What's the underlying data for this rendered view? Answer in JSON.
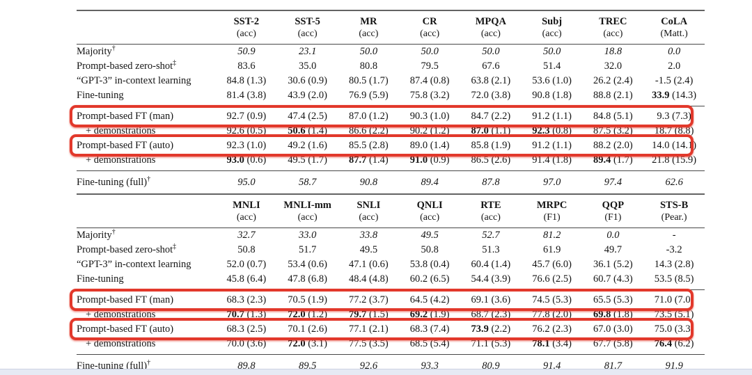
{
  "page": {
    "accent_red": "#e2382b",
    "bottom_bar_color": "#e6eaf4",
    "background": "#ffffff"
  },
  "tables": [
    {
      "id": "tasks-single-sentence",
      "columns": [
        {
          "name": "SST-2",
          "metric": "(acc)"
        },
        {
          "name": "SST-5",
          "metric": "(acc)"
        },
        {
          "name": "MR",
          "metric": "(acc)"
        },
        {
          "name": "CR",
          "metric": "(acc)"
        },
        {
          "name": "MPQA",
          "metric": "(acc)"
        },
        {
          "name": "Subj",
          "metric": "(acc)"
        },
        {
          "name": "TREC",
          "metric": "(acc)"
        },
        {
          "name": "CoLA",
          "metric": "(Matt.)"
        }
      ],
      "rows": [
        {
          "label": "Majority",
          "sup": "†",
          "italic": true,
          "cells": [
            {
              "v": "50.9"
            },
            {
              "v": "23.1"
            },
            {
              "v": "50.0"
            },
            {
              "v": "50.0"
            },
            {
              "v": "50.0"
            },
            {
              "v": "50.0"
            },
            {
              "v": "18.8"
            },
            {
              "v": "0.0"
            }
          ]
        },
        {
          "label": "Prompt-based zero-shot",
          "sup": "‡",
          "cells": [
            {
              "v": "83.6"
            },
            {
              "v": "35.0"
            },
            {
              "v": "80.8"
            },
            {
              "v": "79.5"
            },
            {
              "v": "67.6"
            },
            {
              "v": "51.4"
            },
            {
              "v": "32.0"
            },
            {
              "v": "2.0"
            }
          ]
        },
        {
          "label": "“GPT-3” in-context learning",
          "cells": [
            {
              "v": "84.8",
              "s": "(1.3)"
            },
            {
              "v": "30.6",
              "s": "(0.9)"
            },
            {
              "v": "80.5",
              "s": "(1.7)"
            },
            {
              "v": "87.4",
              "s": "(0.8)"
            },
            {
              "v": "63.8",
              "s": "(2.1)"
            },
            {
              "v": "53.6",
              "s": "(1.0)"
            },
            {
              "v": "26.2",
              "s": "(2.4)"
            },
            {
              "v": "-1.5",
              "s": "(2.4)"
            }
          ]
        },
        {
          "label": "Fine-tuning",
          "last_of_group": true,
          "cells": [
            {
              "v": "81.4",
              "s": "(3.8)"
            },
            {
              "v": "43.9",
              "s": "(2.0)"
            },
            {
              "v": "76.9",
              "s": "(5.9)"
            },
            {
              "v": "75.8",
              "s": "(3.2)"
            },
            {
              "v": "72.0",
              "s": "(3.8)"
            },
            {
              "v": "90.8",
              "s": "(1.8)"
            },
            {
              "v": "88.8",
              "s": "(2.1)"
            },
            {
              "v": "33.9",
              "s": "(14.3)",
              "b": true
            }
          ]
        },
        {
          "label": "Prompt-based FT (man)",
          "rule_above": true,
          "first_of_group": true,
          "highlight": true,
          "cells": [
            {
              "v": "92.7",
              "s": "(0.9)"
            },
            {
              "v": "47.4",
              "s": "(2.5)"
            },
            {
              "v": "87.0",
              "s": "(1.2)"
            },
            {
              "v": "90.3",
              "s": "(1.0)"
            },
            {
              "v": "84.7",
              "s": "(2.2)"
            },
            {
              "v": "91.2",
              "s": "(1.1)"
            },
            {
              "v": "84.8",
              "s": "(5.1)"
            },
            {
              "v": "9.3",
              "s": "(7.3)"
            }
          ]
        },
        {
          "label": "+ demonstrations",
          "indent": true,
          "cells": [
            {
              "v": "92.6",
              "s": "(0.5)"
            },
            {
              "v": "50.6",
              "s": "(1.4)",
              "b": true
            },
            {
              "v": "86.6",
              "s": "(2.2)"
            },
            {
              "v": "90.2",
              "s": "(1.2)"
            },
            {
              "v": "87.0",
              "s": "(1.1)",
              "b": true
            },
            {
              "v": "92.3",
              "s": "(0.8)",
              "b": true
            },
            {
              "v": "87.5",
              "s": "(3.2)"
            },
            {
              "v": "18.7",
              "s": "(8.8)"
            }
          ]
        },
        {
          "label": "Prompt-based FT (auto)",
          "highlight": true,
          "cells": [
            {
              "v": "92.3",
              "s": "(1.0)"
            },
            {
              "v": "49.2",
              "s": "(1.6)"
            },
            {
              "v": "85.5",
              "s": "(2.8)"
            },
            {
              "v": "89.0",
              "s": "(1.4)"
            },
            {
              "v": "85.8",
              "s": "(1.9)"
            },
            {
              "v": "91.2",
              "s": "(1.1)"
            },
            {
              "v": "88.2",
              "s": "(2.0)"
            },
            {
              "v": "14.0",
              "s": "(14.1)"
            }
          ]
        },
        {
          "label": "+ demonstrations",
          "indent": true,
          "last_of_group": true,
          "cells": [
            {
              "v": "93.0",
              "s": "(0.6)",
              "b": true
            },
            {
              "v": "49.5",
              "s": "(1.7)"
            },
            {
              "v": "87.7",
              "s": "(1.4)",
              "b": true
            },
            {
              "v": "91.0",
              "s": "(0.9)",
              "b": true
            },
            {
              "v": "86.5",
              "s": "(2.6)"
            },
            {
              "v": "91.4",
              "s": "(1.8)"
            },
            {
              "v": "89.4",
              "s": "(1.7)",
              "b": true
            },
            {
              "v": "21.8",
              "s": "(15.9)"
            }
          ]
        },
        {
          "label": "Fine-tuning (full)",
          "sup": "†",
          "italic": true,
          "rule_above": true,
          "footer": true,
          "cells": [
            {
              "v": "95.0"
            },
            {
              "v": "58.7"
            },
            {
              "v": "90.8"
            },
            {
              "v": "89.4"
            },
            {
              "v": "87.8"
            },
            {
              "v": "97.0"
            },
            {
              "v": "97.4"
            },
            {
              "v": "62.6"
            }
          ]
        }
      ]
    },
    {
      "id": "tasks-sentence-pair",
      "columns": [
        {
          "name": "MNLI",
          "metric": "(acc)"
        },
        {
          "name": "MNLI-mm",
          "metric": "(acc)"
        },
        {
          "name": "SNLI",
          "metric": "(acc)"
        },
        {
          "name": "QNLI",
          "metric": "(acc)"
        },
        {
          "name": "RTE",
          "metric": "(acc)"
        },
        {
          "name": "MRPC",
          "metric": "(F1)"
        },
        {
          "name": "QQP",
          "metric": "(F1)"
        },
        {
          "name": "STS-B",
          "metric": "(Pear.)"
        }
      ],
      "rows": [
        {
          "label": "Majority",
          "sup": "†",
          "italic": true,
          "cells": [
            {
              "v": "32.7"
            },
            {
              "v": "33.0"
            },
            {
              "v": "33.8"
            },
            {
              "v": "49.5"
            },
            {
              "v": "52.7"
            },
            {
              "v": "81.2"
            },
            {
              "v": "0.0"
            },
            {
              "v": "-"
            }
          ]
        },
        {
          "label": "Prompt-based zero-shot",
          "sup": "‡",
          "cells": [
            {
              "v": "50.8"
            },
            {
              "v": "51.7"
            },
            {
              "v": "49.5"
            },
            {
              "v": "50.8"
            },
            {
              "v": "51.3"
            },
            {
              "v": "61.9"
            },
            {
              "v": "49.7"
            },
            {
              "v": "-3.2"
            }
          ]
        },
        {
          "label": "“GPT-3” in-context learning",
          "cells": [
            {
              "v": "52.0",
              "s": "(0.7)"
            },
            {
              "v": "53.4",
              "s": "(0.6)"
            },
            {
              "v": "47.1",
              "s": "(0.6)"
            },
            {
              "v": "53.8",
              "s": "(0.4)"
            },
            {
              "v": "60.4",
              "s": "(1.4)"
            },
            {
              "v": "45.7",
              "s": "(6.0)"
            },
            {
              "v": "36.1",
              "s": "(5.2)"
            },
            {
              "v": "14.3",
              "s": "(2.8)"
            }
          ]
        },
        {
          "label": "Fine-tuning",
          "last_of_group": true,
          "cells": [
            {
              "v": "45.8",
              "s": "(6.4)"
            },
            {
              "v": "47.8",
              "s": "(6.8)"
            },
            {
              "v": "48.4",
              "s": "(4.8)"
            },
            {
              "v": "60.2",
              "s": "(6.5)"
            },
            {
              "v": "54.4",
              "s": "(3.9)"
            },
            {
              "v": "76.6",
              "s": "(2.5)"
            },
            {
              "v": "60.7",
              "s": "(4.3)"
            },
            {
              "v": "53.5",
              "s": "(8.5)"
            }
          ]
        },
        {
          "label": "Prompt-based FT (man)",
          "rule_above": true,
          "first_of_group": true,
          "highlight": true,
          "cells": [
            {
              "v": "68.3",
              "s": "(2.3)"
            },
            {
              "v": "70.5",
              "s": "(1.9)"
            },
            {
              "v": "77.2",
              "s": "(3.7)"
            },
            {
              "v": "64.5",
              "s": "(4.2)"
            },
            {
              "v": "69.1",
              "s": "(3.6)"
            },
            {
              "v": "74.5",
              "s": "(5.3)"
            },
            {
              "v": "65.5",
              "s": "(5.3)"
            },
            {
              "v": "71.0",
              "s": "(7.0)"
            }
          ]
        },
        {
          "label": "+ demonstrations",
          "indent": true,
          "cells": [
            {
              "v": "70.7",
              "s": "(1.3)",
              "b": true
            },
            {
              "v": "72.0",
              "s": "(1.2)",
              "b": true
            },
            {
              "v": "79.7",
              "s": "(1.5)",
              "b": true
            },
            {
              "v": "69.2",
              "s": "(1.9)",
              "b": true
            },
            {
              "v": "68.7",
              "s": "(2.3)"
            },
            {
              "v": "77.8",
              "s": "(2.0)"
            },
            {
              "v": "69.8",
              "s": "(1.8)",
              "b": true
            },
            {
              "v": "73.5",
              "s": "(5.1)"
            }
          ]
        },
        {
          "label": "Prompt-based FT (auto)",
          "highlight": true,
          "cells": [
            {
              "v": "68.3",
              "s": "(2.5)"
            },
            {
              "v": "70.1",
              "s": "(2.6)"
            },
            {
              "v": "77.1",
              "s": "(2.1)"
            },
            {
              "v": "68.3",
              "s": "(7.4)"
            },
            {
              "v": "73.9",
              "s": "(2.2)",
              "b": true
            },
            {
              "v": "76.2",
              "s": "(2.3)"
            },
            {
              "v": "67.0",
              "s": "(3.0)"
            },
            {
              "v": "75.0",
              "s": "(3.3)"
            }
          ]
        },
        {
          "label": "+ demonstrations",
          "indent": true,
          "last_of_group": true,
          "cells": [
            {
              "v": "70.0",
              "s": "(3.6)"
            },
            {
              "v": "72.0",
              "s": "(3.1)",
              "b": true
            },
            {
              "v": "77.5",
              "s": "(3.5)"
            },
            {
              "v": "68.5",
              "s": "(5.4)"
            },
            {
              "v": "71.1",
              "s": "(5.3)"
            },
            {
              "v": "78.1",
              "s": "(3.4)",
              "b": true
            },
            {
              "v": "67.7",
              "s": "(5.8)"
            },
            {
              "v": "76.4",
              "s": "(6.2)",
              "b": true
            }
          ]
        },
        {
          "label": "Fine-tuning (full)",
          "sup": "†",
          "italic": true,
          "rule_above": true,
          "footer": true,
          "cells": [
            {
              "v": "89.8"
            },
            {
              "v": "89.5"
            },
            {
              "v": "92.6"
            },
            {
              "v": "93.3"
            },
            {
              "v": "80.9"
            },
            {
              "v": "91.4"
            },
            {
              "v": "81.7"
            },
            {
              "v": "91.9"
            }
          ]
        }
      ]
    }
  ]
}
